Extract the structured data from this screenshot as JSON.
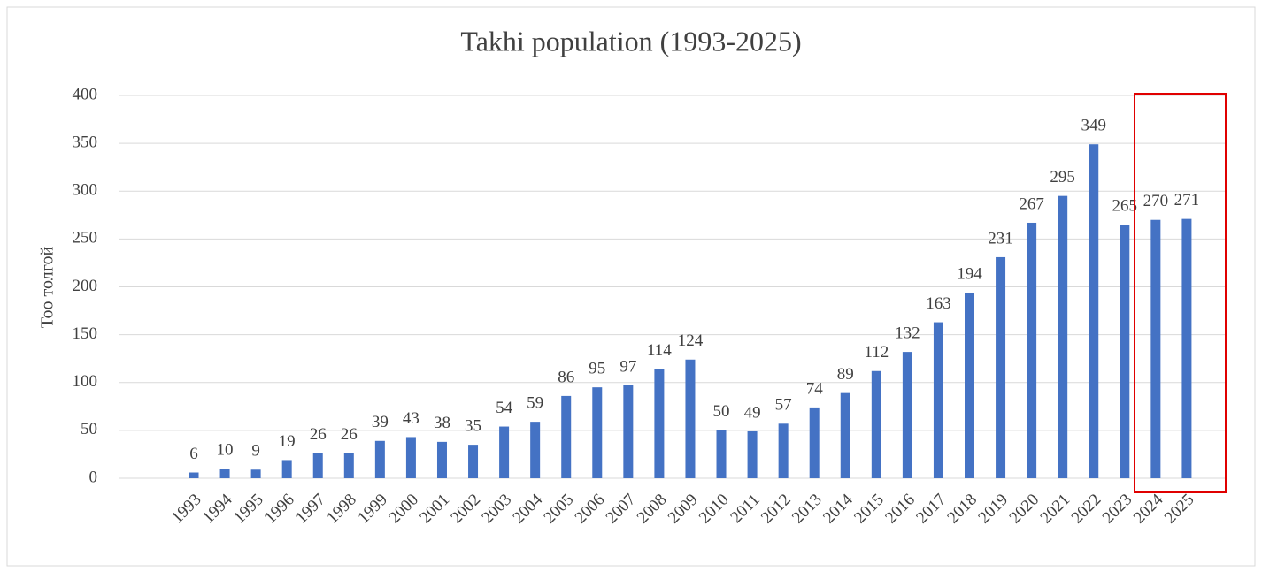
{
  "chart_data": {
    "type": "bar",
    "title": "Takhi population (1993-2025)",
    "y_label": "Тоо толгой",
    "categories": [
      "1993",
      "1994",
      "1995",
      "1996",
      "1997",
      "1998",
      "1999",
      "2000",
      "2001",
      "2002",
      "2003",
      "2004",
      "2005",
      "2006",
      "2007",
      "2008",
      "2009",
      "2010",
      "2011",
      "2012",
      "2013",
      "2014",
      "2015",
      "2016",
      "2017",
      "2018",
      "2019",
      "2020",
      "2021",
      "2022",
      "2023",
      "2024",
      "2025"
    ],
    "values": [
      6,
      10,
      9,
      19,
      26,
      26,
      39,
      43,
      38,
      35,
      54,
      59,
      86,
      95,
      97,
      114,
      124,
      50,
      49,
      57,
      74,
      89,
      112,
      132,
      163,
      194,
      231,
      267,
      295,
      349,
      265,
      270,
      271
    ],
    "color": "#4472c4",
    "ylim": [
      0,
      400
    ],
    "yticks": [
      0,
      50,
      100,
      150,
      200,
      250,
      300,
      350,
      400
    ],
    "grid": true
  }
}
